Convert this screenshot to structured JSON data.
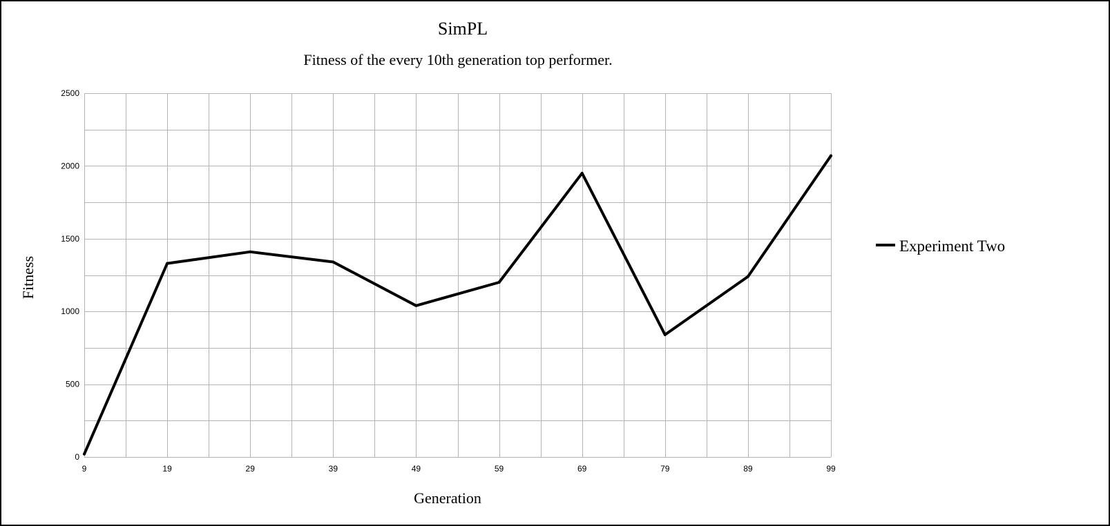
{
  "chart_data": {
    "type": "line",
    "title": "SimPL",
    "subtitle": "Fitness of the every 10th generation top performer.",
    "xlabel": "Generation",
    "ylabel": "Fitness",
    "categories": [
      "9",
      "19",
      "29",
      "39",
      "49",
      "59",
      "69",
      "79",
      "89",
      "99"
    ],
    "x_minor_gridlines": true,
    "y_ticks": [
      0,
      500,
      1000,
      1500,
      2000,
      2500
    ],
    "y_tick_labels": [
      "0",
      "500",
      "1000",
      "1500",
      "2000",
      "2500"
    ],
    "ylim": [
      0,
      2500
    ],
    "y_minor_step": 250,
    "grid": true,
    "legend_position": "right",
    "series": [
      {
        "name": "Experiment Two",
        "color": "#000000",
        "values": [
          20,
          1330,
          1410,
          1340,
          1040,
          1200,
          1950,
          840,
          1240,
          2070
        ]
      }
    ]
  }
}
